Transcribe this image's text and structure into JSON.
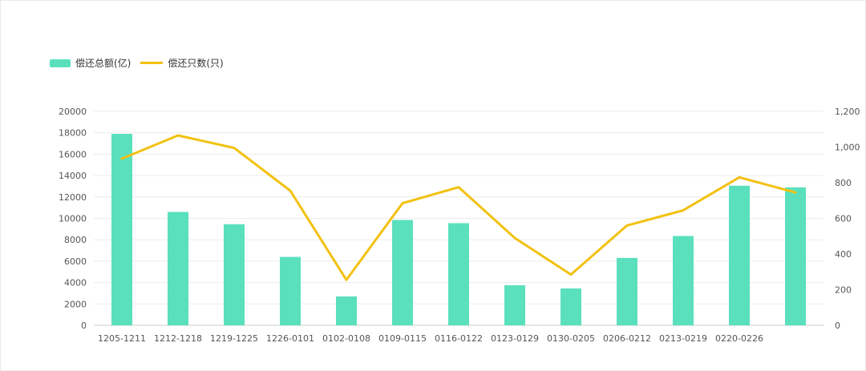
{
  "colors": {
    "bar": "#5ae0bd",
    "line": "#f2c111",
    "grid": "#ececec",
    "axis": "#cccccc"
  },
  "legend": {
    "bar_label": "偿还总额(亿)",
    "line_label": "偿还只数(只)"
  },
  "chart_data": {
    "type": "bar",
    "categories": [
      "1205-1211",
      "1212-1218",
      "1219-1225",
      "1226-0101",
      "0102-0108",
      "0109-0115",
      "0116-0122",
      "0123-0129",
      "0130-0205",
      "0206-0212",
      "0213-0219",
      "0220-0226",
      ""
    ],
    "series": [
      {
        "name": "偿还总额(亿)",
        "type": "bar",
        "axis": "left",
        "values": [
          17900,
          10600,
          9450,
          6400,
          2700,
          9850,
          9550,
          3750,
          3450,
          6300,
          8350,
          13050,
          12900
        ]
      },
      {
        "name": "偿还只数(只)",
        "type": "line",
        "axis": "right",
        "values": [
          935,
          1065,
          995,
          755,
          255,
          685,
          775,
          490,
          285,
          560,
          645,
          830,
          745
        ]
      }
    ],
    "y_left": {
      "min": 0,
      "max": 20000,
      "ticks": [
        "20000",
        "18000",
        "16000",
        "14000",
        "12000",
        "10000",
        "8000",
        "6000",
        "4000",
        "2000",
        "0"
      ]
    },
    "y_right": {
      "min": 0,
      "max": 1200,
      "ticks": [
        "1,200",
        "1,000",
        "800",
        "600",
        "400",
        "200",
        "0"
      ]
    },
    "grid": true,
    "legend_position": "top-left"
  }
}
